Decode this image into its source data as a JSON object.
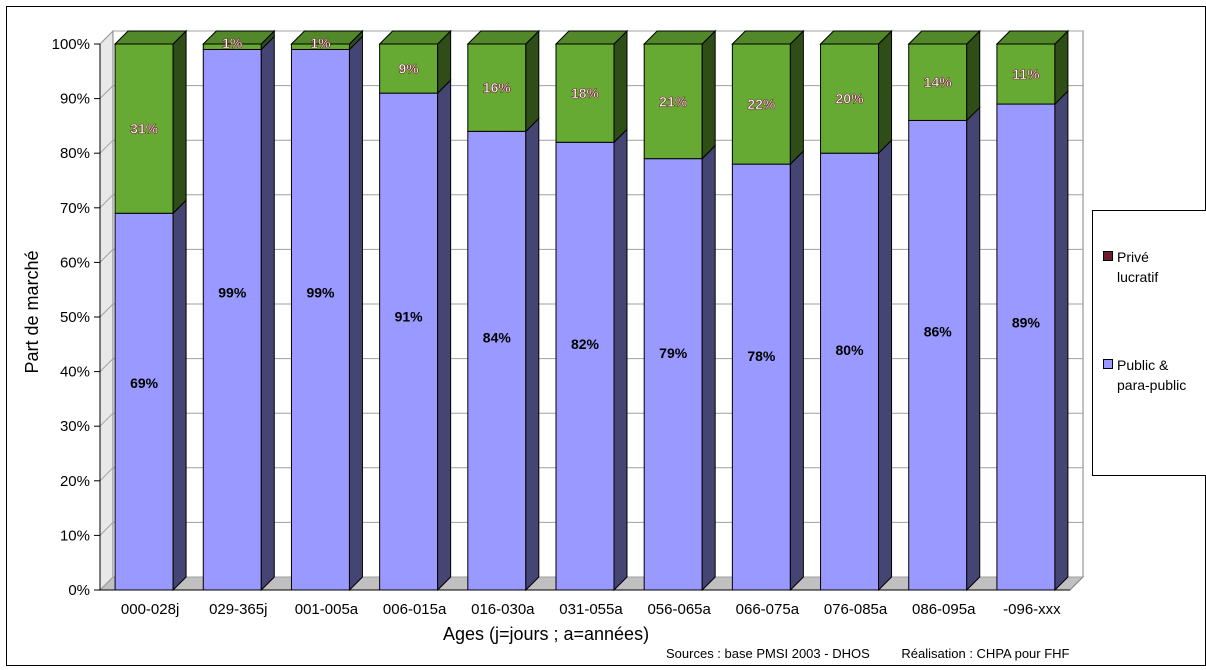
{
  "chart_data": {
    "type": "bar",
    "stacked": true,
    "percent_stacked": true,
    "ylabel": "Part de marché",
    "xlabel": "Ages (j=jours ; a=années)",
    "ylim": [
      0,
      100
    ],
    "y_ticks": [
      "0%",
      "10%",
      "20%",
      "30%",
      "40%",
      "50%",
      "60%",
      "70%",
      "80%",
      "90%",
      "100%"
    ],
    "categories": [
      "000-028j",
      "029-365j",
      "001-005a",
      "006-015a",
      "016-030a",
      "031-055a",
      "056-065a",
      "066-075a",
      "076-085a",
      "086-095a",
      "-096-xxx"
    ],
    "series": [
      {
        "name": "Public & para-public",
        "color": "#9999ff",
        "values": [
          69,
          99,
          99,
          91,
          84,
          82,
          79,
          78,
          80,
          86,
          89
        ],
        "labels": [
          "69%",
          "99%",
          "99%",
          "91%",
          "84%",
          "82%",
          "79%",
          "78%",
          "80%",
          "86%",
          "89%"
        ]
      },
      {
        "name": "",
        "color": "#66aa33",
        "values": [
          31,
          1,
          1,
          9,
          16,
          18,
          21,
          22,
          20,
          14,
          11
        ],
        "labels": [
          "31%",
          "1%",
          "1%",
          "9%",
          "16%",
          "18%",
          "21%",
          "22%",
          "20%",
          "14%",
          "11%"
        ]
      },
      {
        "name": "Privé lucratif",
        "color": "#6b1a2a",
        "values": [
          0,
          0,
          0,
          0,
          0,
          0,
          0,
          0,
          0,
          0,
          0
        ]
      }
    ],
    "legend_position": "right",
    "grid": true,
    "style": "3d"
  },
  "legend": {
    "items": [
      {
        "line1": "Privé",
        "line2": "lucratif",
        "color": "#6b1a2a"
      },
      {
        "line1": "Public &",
        "line2": "para-public",
        "color": "#9999ff"
      }
    ]
  },
  "footer": {
    "sources": "Sources : base PMSI 2003 - DHOS",
    "realisation": "Réalisation : CHPA pour FHF"
  }
}
